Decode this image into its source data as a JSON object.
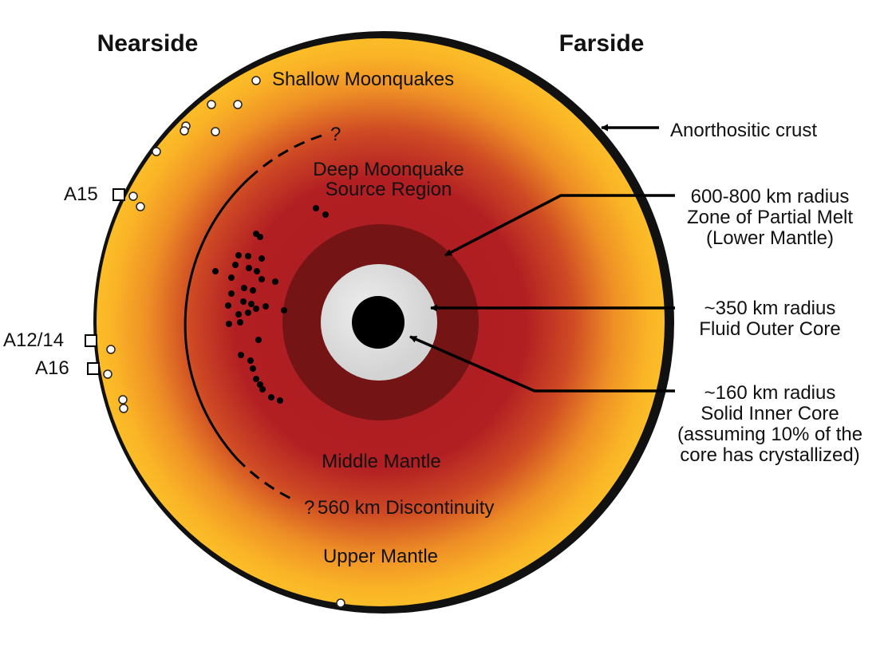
{
  "headers": {
    "nearside": "Nearside",
    "farside": "Farside"
  },
  "regions": {
    "shallow": "Shallow Moonquakes",
    "deep_line1": "Deep Moonquake",
    "deep_line2": "Source Region",
    "middle_mantle": "Middle Mantle",
    "discontinuity": "560 km Discontinuity",
    "upper_mantle": "Upper Mantle",
    "question_top": "?",
    "question_bottom": "?"
  },
  "stations": {
    "a15": "A15",
    "a1214": "A12/14",
    "a16": "A16"
  },
  "callouts": {
    "crust": "Anorthositic crust",
    "melt": [
      "600-800 km radius",
      "Zone of Partial Melt",
      "(Lower Mantle)"
    ],
    "outer_core": [
      "~350 km radius",
      "Fluid Outer Core"
    ],
    "inner_core": [
      "~160 km radius",
      "Solid Inner Core",
      "(assuming 10% of the",
      "core has crystallized)"
    ]
  },
  "colors": {
    "upper_mantle": "#f9b927",
    "middle_mantle": "#b51e22",
    "partial_melt": "#741414",
    "outer_core": "#dedede",
    "inner_core": "#000000",
    "crust": "#111111"
  }
}
